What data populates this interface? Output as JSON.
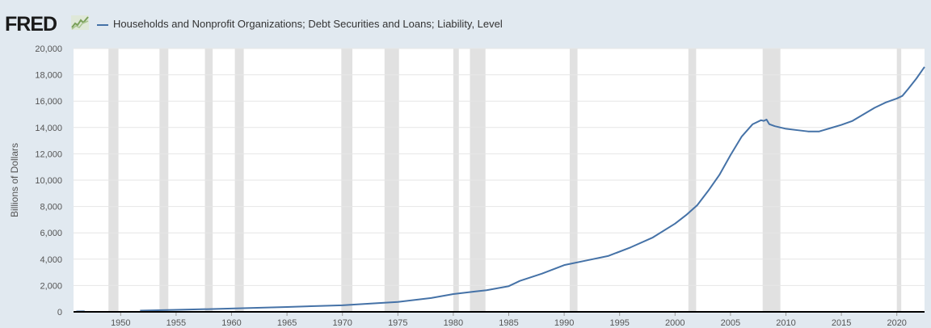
{
  "header": {
    "logo_text": "FRED",
    "logo_icon": "line-chart-icon"
  },
  "chart_data": {
    "type": "line",
    "title": "",
    "xlabel": "",
    "ylabel": "Billions of Dollars",
    "xlim": [
      1945.75,
      2022.5
    ],
    "ylim": [
      0,
      20000
    ],
    "yticks": [
      0,
      2000,
      4000,
      6000,
      8000,
      10000,
      12000,
      14000,
      16000,
      18000,
      20000
    ],
    "ytick_labels": [
      "0",
      "2,000",
      "4,000",
      "6,000",
      "8,000",
      "10,000",
      "12,000",
      "14,000",
      "16,000",
      "18,000",
      "20,000"
    ],
    "xticks": [
      1950,
      1955,
      1960,
      1965,
      1970,
      1975,
      1980,
      1985,
      1990,
      1995,
      2000,
      2005,
      2010,
      2015,
      2020
    ],
    "xtick_labels": [
      "1950",
      "1955",
      "1960",
      "1965",
      "1970",
      "1975",
      "1980",
      "1985",
      "1990",
      "1995",
      "2000",
      "2005",
      "2010",
      "2015",
      "2020"
    ],
    "grid": "horizontal",
    "recession_bands": [
      [
        1948.9,
        1949.8
      ],
      [
        1953.5,
        1954.3
      ],
      [
        1957.6,
        1958.3
      ],
      [
        1960.3,
        1961.1
      ],
      [
        1969.9,
        1970.9
      ],
      [
        1973.8,
        1975.1
      ],
      [
        1980.0,
        1980.5
      ],
      [
        1981.5,
        1982.9
      ],
      [
        1990.5,
        1991.2
      ],
      [
        2001.2,
        2001.9
      ],
      [
        2007.9,
        2009.5
      ],
      [
        2020.0,
        2020.4
      ]
    ],
    "series": [
      {
        "name": "Households and Nonprofit Organizations; Debt Securities and Loans; Liability, Level",
        "color": "#4572a7",
        "x": [
          1946,
          1946.75,
          1951.75,
          1955,
          1960,
          1965,
          1970,
          1973,
          1975,
          1978,
          1980,
          1982,
          1983,
          1985,
          1986,
          1988,
          1990,
          1992,
          1994,
          1996,
          1998,
          2000,
          2001,
          2002,
          2003,
          2004,
          2005,
          2006,
          2007,
          2007.75,
          2008,
          2008.25,
          2008.5,
          2009,
          2010,
          2011,
          2012,
          2013,
          2014,
          2015,
          2016,
          2017,
          2018,
          2019,
          2020,
          2020.5,
          2021,
          2021.75,
          2022.5
        ],
        "y": [
          30,
          40,
          90,
          150,
          250,
          370,
          500,
          650,
          750,
          1050,
          1350,
          1550,
          1640,
          1950,
          2350,
          2900,
          3550,
          3900,
          4250,
          4900,
          5650,
          6700,
          7350,
          8100,
          9200,
          10400,
          11900,
          13300,
          14250,
          14550,
          14500,
          14600,
          14250,
          14100,
          13900,
          13800,
          13700,
          13700,
          13950,
          14200,
          14500,
          15000,
          15500,
          15900,
          16200,
          16400,
          16900,
          17700,
          18600
        ]
      }
    ]
  }
}
